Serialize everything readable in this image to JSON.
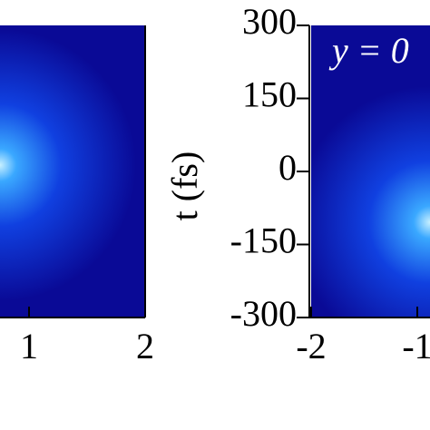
{
  "chart_data": [
    {
      "type": "heatmap",
      "xlim": [
        -2,
        2
      ],
      "xticks": [
        1,
        2
      ],
      "ylim": [
        -300,
        300
      ]
    },
    {
      "type": "heatmap",
      "ylabel": "t (fs)",
      "annotation": "y = 0",
      "xlim": [
        -2,
        2
      ],
      "xticks": [
        -2,
        -1
      ],
      "ylim": [
        -300,
        300
      ],
      "yticks": [
        300,
        150,
        0,
        -150,
        -300
      ]
    }
  ]
}
